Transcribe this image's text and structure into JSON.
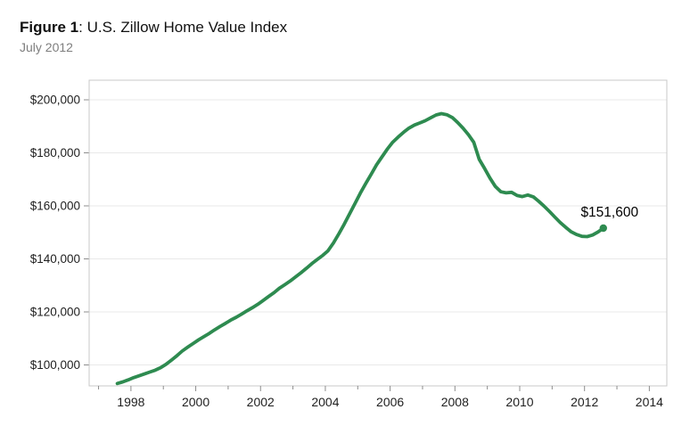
{
  "header": {
    "figure_label": "Figure 1",
    "title_rest": ": U.S. Zillow Home Value Index",
    "subtitle": "July 2012"
  },
  "colors": {
    "line": "#2e8b50",
    "end_marker": "#2e8b50",
    "grid": "#e9e9e9",
    "plot_border": "#c8c8c8",
    "tick": "#8c8c8c",
    "axis_text": "#1f1f1f",
    "subtitle_text": "#7e7e7e",
    "annotation_text": "#000000",
    "background": "#ffffff"
  },
  "chart_data": {
    "type": "line",
    "title": "U.S. Zillow Home Value Index",
    "subtitle": "July 2012",
    "series_name": "U.S. Zillow Home Value Index (USD)",
    "xlabel": "",
    "ylabel": "",
    "legend": "none",
    "grid": "horizontal",
    "x_range": [
      1996.71,
      2014.54
    ],
    "y_range": [
      92100,
      207400
    ],
    "x_ticks": [
      {
        "year": 1997
      },
      {
        "year": 1998,
        "label": "1998"
      },
      {
        "year": 1999
      },
      {
        "year": 2000,
        "label": "2000"
      },
      {
        "year": 2001
      },
      {
        "year": 2002,
        "label": "2002"
      },
      {
        "year": 2003
      },
      {
        "year": 2004,
        "label": "2004"
      },
      {
        "year": 2005
      },
      {
        "year": 2006,
        "label": "2006"
      },
      {
        "year": 2007
      },
      {
        "year": 2008,
        "label": "2008"
      },
      {
        "year": 2009
      },
      {
        "year": 2010,
        "label": "2010"
      },
      {
        "year": 2011
      },
      {
        "year": 2012,
        "label": "2012"
      },
      {
        "year": 2013
      },
      {
        "year": 2014,
        "label": "2014"
      }
    ],
    "y_ticks": [
      {
        "value": 100000,
        "label": "$100,000"
      },
      {
        "value": 120000,
        "label": "$120,000"
      },
      {
        "value": 140000,
        "label": "$140,000"
      },
      {
        "value": 160000,
        "label": "$160,000"
      },
      {
        "value": 180000,
        "label": "$180,000"
      },
      {
        "value": 200000,
        "label": "$200,000"
      }
    ],
    "annotation": {
      "text": "$151,600",
      "x": 2012.58,
      "y": 151600
    },
    "end_marker": true,
    "points": [
      [
        1997.58,
        93000
      ],
      [
        1997.75,
        93600
      ],
      [
        1997.92,
        94400
      ],
      [
        1998.08,
        95200
      ],
      [
        1998.25,
        95900
      ],
      [
        1998.42,
        96600
      ],
      [
        1998.58,
        97300
      ],
      [
        1998.75,
        98000
      ],
      [
        1998.92,
        99000
      ],
      [
        1999.08,
        100200
      ],
      [
        1999.25,
        101800
      ],
      [
        1999.42,
        103500
      ],
      [
        1999.58,
        105200
      ],
      [
        1999.75,
        106700
      ],
      [
        1999.92,
        108100
      ],
      [
        2000.08,
        109400
      ],
      [
        2000.25,
        110700
      ],
      [
        2000.42,
        111900
      ],
      [
        2000.58,
        113200
      ],
      [
        2000.75,
        114500
      ],
      [
        2000.92,
        115700
      ],
      [
        2001.08,
        116900
      ],
      [
        2001.25,
        118000
      ],
      [
        2001.42,
        119200
      ],
      [
        2001.58,
        120400
      ],
      [
        2001.75,
        121600
      ],
      [
        2001.92,
        122900
      ],
      [
        2002.08,
        124300
      ],
      [
        2002.25,
        125800
      ],
      [
        2002.42,
        127300
      ],
      [
        2002.58,
        128900
      ],
      [
        2002.75,
        130300
      ],
      [
        2002.92,
        131700
      ],
      [
        2003.08,
        133200
      ],
      [
        2003.25,
        134800
      ],
      [
        2003.42,
        136500
      ],
      [
        2003.58,
        138200
      ],
      [
        2003.75,
        139800
      ],
      [
        2003.92,
        141300
      ],
      [
        2004.08,
        143000
      ],
      [
        2004.25,
        146000
      ],
      [
        2004.42,
        149500
      ],
      [
        2004.58,
        153000
      ],
      [
        2004.75,
        157000
      ],
      [
        2004.92,
        161000
      ],
      [
        2005.08,
        164800
      ],
      [
        2005.25,
        168500
      ],
      [
        2005.42,
        172000
      ],
      [
        2005.58,
        175500
      ],
      [
        2005.75,
        178500
      ],
      [
        2005.92,
        181500
      ],
      [
        2006.08,
        184000
      ],
      [
        2006.25,
        186000
      ],
      [
        2006.42,
        187800
      ],
      [
        2006.58,
        189300
      ],
      [
        2006.75,
        190500
      ],
      [
        2006.92,
        191300
      ],
      [
        2007.08,
        192100
      ],
      [
        2007.25,
        193200
      ],
      [
        2007.42,
        194300
      ],
      [
        2007.58,
        194800
      ],
      [
        2007.75,
        194400
      ],
      [
        2007.92,
        193300
      ],
      [
        2008.08,
        191500
      ],
      [
        2008.25,
        189300
      ],
      [
        2008.42,
        186800
      ],
      [
        2008.58,
        184000
      ],
      [
        2008.75,
        177500
      ],
      [
        2008.92,
        174000
      ],
      [
        2009.08,
        170500
      ],
      [
        2009.25,
        167300
      ],
      [
        2009.42,
        165300
      ],
      [
        2009.58,
        164900
      ],
      [
        2009.75,
        165100
      ],
      [
        2009.92,
        163900
      ],
      [
        2010.08,
        163500
      ],
      [
        2010.25,
        164100
      ],
      [
        2010.42,
        163400
      ],
      [
        2010.58,
        161800
      ],
      [
        2010.75,
        159900
      ],
      [
        2010.92,
        157900
      ],
      [
        2011.08,
        155800
      ],
      [
        2011.25,
        153700
      ],
      [
        2011.42,
        151900
      ],
      [
        2011.58,
        150300
      ],
      [
        2011.75,
        149200
      ],
      [
        2011.92,
        148500
      ],
      [
        2012.08,
        148400
      ],
      [
        2012.25,
        149000
      ],
      [
        2012.42,
        150200
      ],
      [
        2012.58,
        151600
      ]
    ]
  }
}
